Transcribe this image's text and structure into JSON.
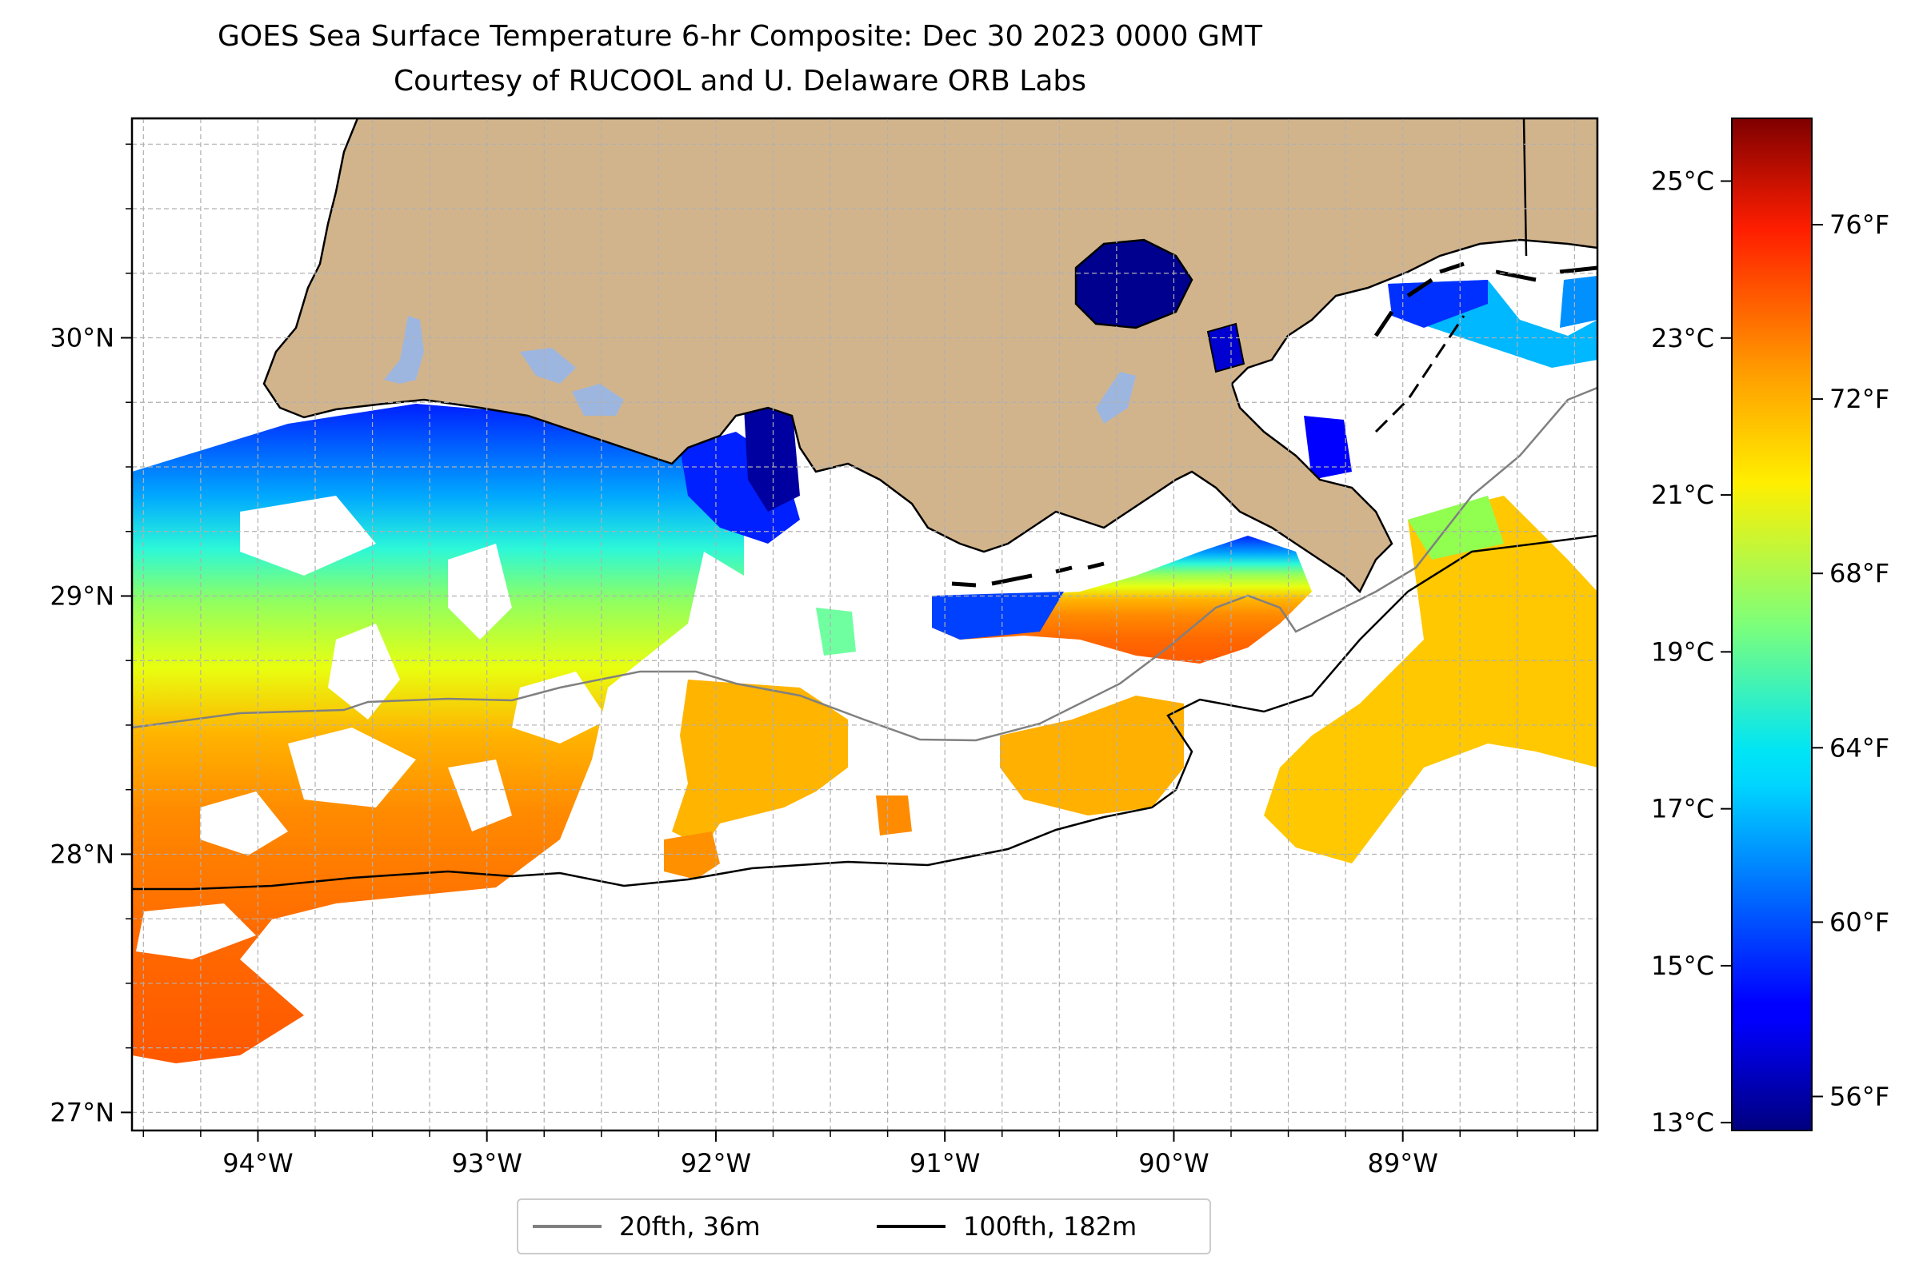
{
  "title_line1": "GOES Sea Surface Temperature 6-hr Composite: Dec 30 2023 0000 GMT",
  "title_line2": "Courtesy of RUCOOL and U. Delaware ORB Labs",
  "map": {
    "lon_range": [
      -94.55,
      -88.15
    ],
    "lat_range": [
      26.93,
      30.85
    ],
    "land_color": "#d2b48c",
    "lake_color": "#9db6e0",
    "lon_ticks": [
      {
        "value": -94,
        "label": "94°W"
      },
      {
        "value": -93,
        "label": "93°W"
      },
      {
        "value": -92,
        "label": "92°W"
      },
      {
        "value": -91,
        "label": "91°W"
      },
      {
        "value": -90,
        "label": "90°W"
      },
      {
        "value": -89,
        "label": "89°W"
      }
    ],
    "lat_ticks": [
      {
        "value": 27,
        "label": "27°N"
      },
      {
        "value": 28,
        "label": "28°N"
      },
      {
        "value": 29,
        "label": "29°N"
      },
      {
        "value": 30,
        "label": "30°N"
      }
    ],
    "gridlines": "dashed"
  },
  "colorbar": {
    "colormap": "jet",
    "celsius_range": [
      12.9,
      25.8
    ],
    "celsius_ticks": [
      {
        "value": 13,
        "label": "13°C"
      },
      {
        "value": 15,
        "label": "15°C"
      },
      {
        "value": 17,
        "label": "17°C"
      },
      {
        "value": 19,
        "label": "19°C"
      },
      {
        "value": 21,
        "label": "21°C"
      },
      {
        "value": 23,
        "label": "23°C"
      },
      {
        "value": 25,
        "label": "25°C"
      }
    ],
    "fahrenheit_ticks": [
      {
        "value": 56,
        "label": "56°F"
      },
      {
        "value": 60,
        "label": "60°F"
      },
      {
        "value": 64,
        "label": "64°F"
      },
      {
        "value": 68,
        "label": "68°F"
      },
      {
        "value": 72,
        "label": "72°F"
      },
      {
        "value": 76,
        "label": "76°F"
      }
    ]
  },
  "legend": [
    {
      "label": "20fth, 36m",
      "color": "#808080"
    },
    {
      "label": "100fth, 182m",
      "color": "#000000"
    }
  ]
}
